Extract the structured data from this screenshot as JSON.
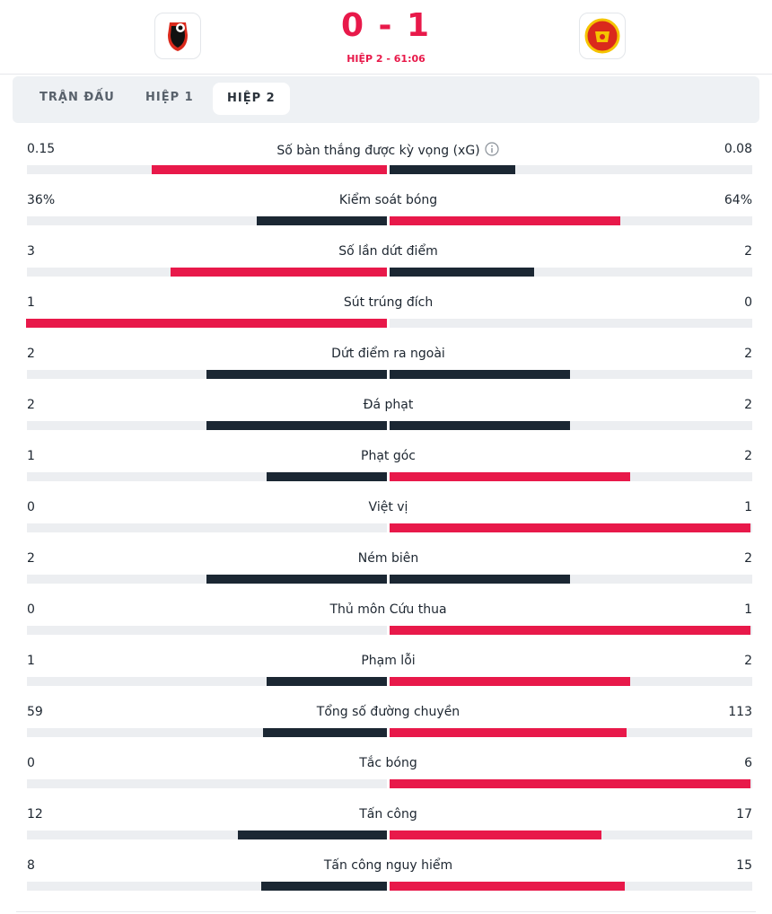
{
  "header": {
    "score": "0 - 1",
    "period": "HIỆP 2 - 61:06"
  },
  "tabs": [
    "TRẬN ĐẤU",
    "HIỆP 1",
    "HIỆP 2"
  ],
  "stats": [
    {
      "label": "Số bàn thắng được kỳ vọng (xG)",
      "home": 0.15,
      "away": 0.08
    },
    {
      "label": "Kiểm soát bóng",
      "home": 36,
      "away": 64,
      "home_label": "36%",
      "away_label": "64%"
    },
    {
      "label": "Số lần dứt điểm",
      "home": 3,
      "away": 2
    },
    {
      "label": "Sút trúng đích",
      "home": 1,
      "away": 0
    },
    {
      "label": "Dứt điểm ra ngoài",
      "home": 2,
      "away": 2
    },
    {
      "label": "Đá phạt",
      "home": 2,
      "away": 2
    },
    {
      "label": "Phạt góc",
      "home": 1,
      "away": 2
    },
    {
      "label": "Việt vị",
      "home": 0,
      "away": 1
    },
    {
      "label": "Ném biên",
      "home": 2,
      "away": 2
    },
    {
      "label": "Thủ môn Cứu thua",
      "home": 0,
      "away": 1
    },
    {
      "label": "Phạm lỗi",
      "home": 1,
      "away": 2
    },
    {
      "label": "Tổng số đường chuyền",
      "home": 59,
      "away": 113
    },
    {
      "label": "Tắc bóng",
      "home": 0,
      "away": 6
    },
    {
      "label": "Tấn công",
      "home": 12,
      "away": 17
    },
    {
      "label": "Tấn công nguy hiểm",
      "home": 8,
      "away": 15
    }
  ]
}
